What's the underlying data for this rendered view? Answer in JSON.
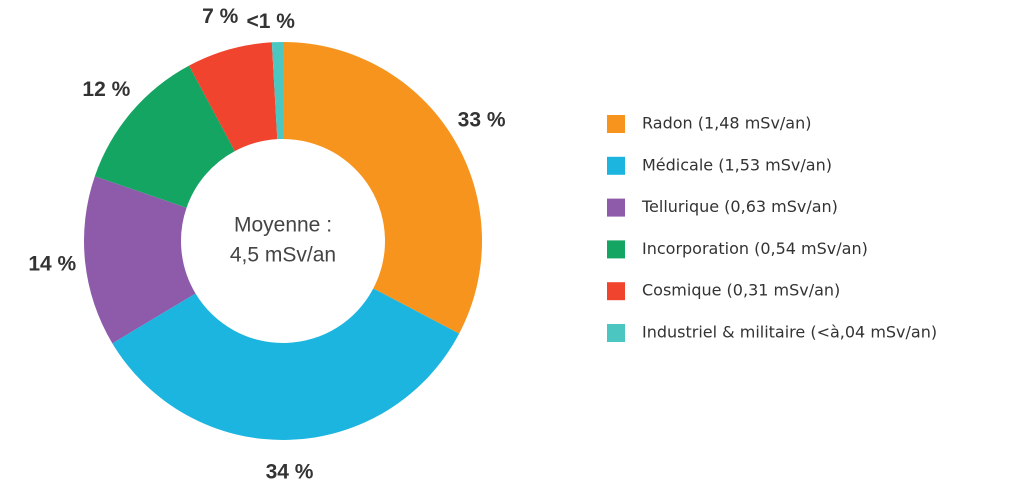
{
  "chart_data": {
    "type": "donut",
    "categories": [
      "Radon (1,48 mSv/an)",
      "Médicale (1,53 mSv/an)",
      "Tellurique (0,63 mSv/an)",
      "Incorporation (0,54 mSv/an)",
      "Cosmique (0,31 mSv/an)",
      "Industriel & militaire (<à,04 mSv/an)"
    ],
    "values": [
      33,
      34,
      14,
      12,
      7,
      0.9
    ],
    "value_labels": [
      "33 %",
      "34 %",
      "14 %",
      "12 %",
      "7 %",
      "<1 %"
    ],
    "colors": [
      "#f7941d",
      "#1bb5e0",
      "#8e5bab",
      "#14a562",
      "#f0442e",
      "#4bc6c0"
    ],
    "center_text": [
      "Moyenne :",
      "4,5 mSv/an"
    ]
  }
}
